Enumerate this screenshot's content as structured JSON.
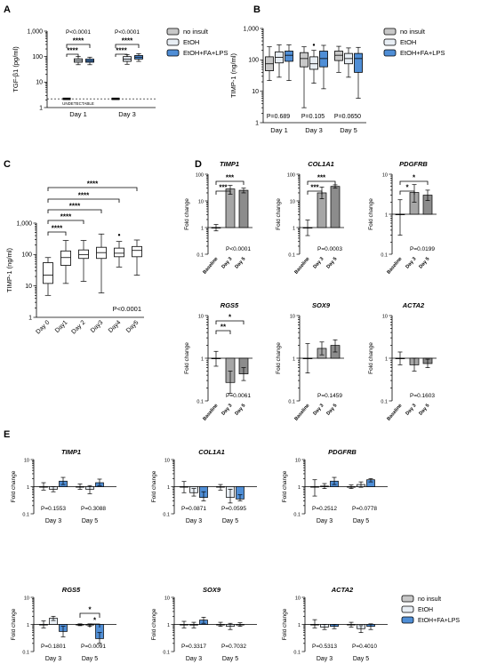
{
  "colors": {
    "no_insult": "#c8c8c8",
    "etoh": "#e8eef4",
    "etoh_fa_lps": "#4f8ed6",
    "day_gray": "#a6a6a6",
    "day_gray_dark": "#8c8c8c"
  },
  "panels": {
    "A": {
      "letter": "A",
      "ylabel": "TGF-β1 (pg/ml)",
      "ytick_labels": [
        "1,000",
        "100",
        "10",
        "1"
      ],
      "p_values": [
        "P<0.0001",
        "P<0.0001"
      ],
      "stars": "****",
      "undetectable": "UNDETECTABLE",
      "categories": [
        "Day 1",
        "Day 3"
      ]
    },
    "B": {
      "letter": "B",
      "ylabel": "TIMP-1 (ng/ml)",
      "ytick_labels": [
        "1,000",
        "100",
        "10",
        "1"
      ],
      "p_values": [
        "P=0.689",
        "P=0.105",
        "P=0.0650"
      ],
      "categories": [
        "Day 1",
        "Day 3",
        "Day 5"
      ]
    },
    "C": {
      "letter": "C",
      "ylabel": "TIMP-1 (ng/ml)",
      "ytick_labels": [
        "1,000",
        "100",
        "10",
        "1"
      ],
      "p_value": "P<0.0001",
      "stars": "****",
      "categories": [
        "Day 0",
        "Day1",
        "Day 2",
        "Day3",
        "Day4",
        "Day5"
      ]
    },
    "D": {
      "letter": "D",
      "ylabel": "Fold change",
      "categories": [
        "Baseline",
        "Day 3",
        "Day 5"
      ]
    },
    "E": {
      "letter": "E",
      "ylabel": "Fold change",
      "categories": [
        "Day 3",
        "Day 5"
      ]
    }
  },
  "legend": {
    "no_insult": "no insult",
    "etoh": "EtOH",
    "etoh_fa_lps": "EtOH+FA+LPS"
  },
  "chart_data": [
    {
      "id": "A",
      "type": "box",
      "log_scale": true,
      "ylim": [
        1,
        1000
      ],
      "categories": [
        "Day 1",
        "Day 3"
      ],
      "series": [
        {
          "name": "no insult",
          "boxes": [
            {
              "note": "UNDETECTABLE"
            },
            {
              "note": "UNDETECTABLE"
            }
          ]
        },
        {
          "name": "EtOH",
          "boxes": [
            {
              "min": 48,
              "q1": 60,
              "median": 70,
              "q3": 82,
              "max": 100
            },
            {
              "min": 50,
              "q1": 65,
              "median": 80,
              "q3": 100,
              "max": 120
            }
          ]
        },
        {
          "name": "EtOH+FA+LPS",
          "boxes": [
            {
              "min": 48,
              "q1": 60,
              "median": 68,
              "q3": 80,
              "max": 95
            },
            {
              "min": 65,
              "q1": 80,
              "median": 95,
              "q3": 110,
              "max": 130
            }
          ]
        }
      ]
    },
    {
      "id": "B",
      "type": "box",
      "log_scale": true,
      "ylim": [
        1,
        1000
      ],
      "categories": [
        "Day 1",
        "Day 3",
        "Day 5"
      ],
      "series": [
        {
          "name": "no insult",
          "boxes": [
            {
              "min": 22,
              "q1": 45,
              "median": 75,
              "q3": 125,
              "max": 260
            },
            {
              "min": 3,
              "q1": 60,
              "median": 110,
              "q3": 170,
              "max": 260
            },
            {
              "min": 40,
              "q1": 95,
              "median": 140,
              "q3": 190,
              "max": 270
            }
          ]
        },
        {
          "name": "EtOH",
          "boxes": [
            {
              "min": 28,
              "q1": 80,
              "median": 120,
              "q3": 180,
              "max": 300
            },
            {
              "min": 18,
              "q1": 50,
              "median": 75,
              "q3": 125,
              "max": 200
            },
            {
              "min": 28,
              "q1": 75,
              "median": 110,
              "q3": 160,
              "max": 240
            }
          ]
        },
        {
          "name": "EtOH+FA+LPS",
          "boxes": [
            {
              "min": 22,
              "q1": 90,
              "median": 140,
              "q3": 190,
              "max": 300
            },
            {
              "min": 12,
              "q1": 60,
              "median": 110,
              "q3": 190,
              "max": 290
            },
            {
              "min": 6,
              "q1": 40,
              "median": 110,
              "q3": 160,
              "max": 250
            }
          ]
        }
      ]
    },
    {
      "id": "C",
      "type": "box",
      "log_scale": true,
      "ylim": [
        1,
        1000
      ],
      "categories": [
        "Day 0",
        "Day1",
        "Day 2",
        "Day3",
        "Day4",
        "Day5"
      ],
      "series": [
        {
          "name": "",
          "boxes": [
            {
              "min": 5,
              "q1": 12,
              "median": 22,
              "q3": 55,
              "max": 80
            },
            {
              "min": 12,
              "q1": 45,
              "median": 80,
              "q3": 130,
              "max": 280
            },
            {
              "min": 14,
              "q1": 75,
              "median": 100,
              "q3": 140,
              "max": 280
            },
            {
              "min": 6,
              "q1": 75,
              "median": 115,
              "q3": 170,
              "max": 450
            },
            {
              "min": 40,
              "q1": 85,
              "median": 110,
              "q3": 160,
              "max": 260
            },
            {
              "min": 22,
              "q1": 85,
              "median": 135,
              "q3": 180,
              "max": 290
            }
          ]
        }
      ]
    },
    {
      "id": "D",
      "type": "bar",
      "log_scale": true,
      "subplots": [
        {
          "title": "TIMP1",
          "ylim": [
            0.1,
            100
          ],
          "ytick_labels": [
            "100",
            "10",
            "1",
            "0.1"
          ],
          "values": [
            1,
            28,
            25
          ],
          "err_hi": [
            1.3,
            38,
            30
          ],
          "err_lo": [
            0.75,
            18,
            20
          ],
          "p_value": "P<0.0001",
          "sig": [
            "***",
            "***"
          ]
        },
        {
          "title": "COL1A1",
          "ylim": [
            0.1,
            100
          ],
          "ytick_labels": [
            "100",
            "10",
            "1",
            "0.1"
          ],
          "values": [
            1,
            20,
            35
          ],
          "err_hi": [
            1.9,
            33,
            40
          ],
          "err_lo": [
            0.5,
            12,
            30
          ],
          "p_value": "P=0.0003",
          "sig": [
            "***",
            "***"
          ]
        },
        {
          "title": "PDGFRB",
          "ylim": [
            0.1,
            10
          ],
          "ytick_labels": [
            "10",
            "1",
            "0.1"
          ],
          "values": [
            1,
            3.5,
            3.0
          ],
          "err_hi": [
            2.3,
            5.5,
            4.0
          ],
          "err_lo": [
            0.3,
            2.0,
            2.2
          ],
          "p_value": "P=0.0199",
          "sig": [
            "*",
            "*"
          ]
        },
        {
          "title": "RGS5",
          "ylim": [
            0.1,
            10
          ],
          "ytick_labels": [
            "10",
            "1",
            "0.1"
          ],
          "values": [
            1,
            0.27,
            0.43
          ],
          "err_hi": [
            1.45,
            0.5,
            0.6
          ],
          "err_lo": [
            0.65,
            0.15,
            0.3
          ],
          "p_value": "P=0.0061",
          "sig": [
            "**",
            "*"
          ]
        },
        {
          "title": "SOX9",
          "ylim": [
            0.1,
            10
          ],
          "ytick_labels": [
            "10",
            "1",
            "0.1"
          ],
          "values": [
            1,
            1.7,
            2.0
          ],
          "err_hi": [
            2.2,
            2.4,
            2.7
          ],
          "err_lo": [
            0.45,
            1.2,
            1.4
          ],
          "p_value": "P=0.1459",
          "sig": []
        },
        {
          "title": "ACTA2",
          "ylim": [
            0.1,
            10
          ],
          "ytick_labels": [
            "10",
            "1",
            "0.1"
          ],
          "values": [
            1,
            0.7,
            0.75
          ],
          "err_hi": [
            1.4,
            1.0,
            0.95
          ],
          "err_lo": [
            0.7,
            0.5,
            0.6
          ],
          "p_value": "P=0.1603",
          "sig": []
        }
      ]
    },
    {
      "id": "E",
      "type": "bar",
      "log_scale": true,
      "ylim": [
        0.1,
        10
      ],
      "ytick_labels": [
        "10",
        "1",
        "0.1"
      ],
      "series_names": [
        "no insult",
        "EtOH",
        "EtOH+FA+LPS"
      ],
      "subplots": [
        {
          "title": "TIMP1",
          "values": [
            [
              1,
              0.8,
              1.6
            ],
            [
              1,
              0.8,
              1.4
            ]
          ],
          "err_hi": [
            [
              1.4,
              1.0,
              2.2
            ],
            [
              1.25,
              1.1,
              1.9
            ]
          ],
          "err_lo": [
            [
              0.75,
              0.65,
              1.2
            ],
            [
              0.8,
              0.55,
              1.1
            ]
          ],
          "p_values": [
            "P=0.1553",
            "P=0.3088"
          ],
          "sig": []
        },
        {
          "title": "COL1A1",
          "values": [
            [
              1,
              0.6,
              0.4
            ],
            [
              1,
              0.4,
              0.35
            ]
          ],
          "err_hi": [
            [
              1.55,
              0.85,
              0.65
            ],
            [
              1.2,
              0.8,
              0.5
            ]
          ],
          "err_lo": [
            [
              0.6,
              0.45,
              0.3
            ],
            [
              0.75,
              0.25,
              0.3
            ]
          ],
          "p_values": [
            "P=0.0871",
            "P=0.0595"
          ],
          "sig": []
        },
        {
          "title": "PDGFRB",
          "values": [
            [
              1,
              1.05,
              1.6
            ],
            [
              1,
              1.2,
              1.8
            ]
          ],
          "err_hi": [
            [
              1.8,
              1.3,
              2.2
            ],
            [
              1.15,
              1.5,
              2.0
            ]
          ],
          "err_lo": [
            [
              0.45,
              0.85,
              1.2
            ],
            [
              0.85,
              0.95,
              1.5
            ]
          ],
          "p_values": [
            "P=0.2512",
            "P=0.0778"
          ],
          "sig": []
        },
        {
          "title": "RGS5",
          "values": [
            [
              1,
              1.7,
              0.55
            ],
            [
              1,
              0.95,
              0.3
            ]
          ],
          "err_hi": [
            [
              1.35,
              2.0,
              0.85
            ],
            [
              1.05,
              1.05,
              0.5
            ]
          ],
          "err_lo": [
            [
              0.75,
              1.4,
              0.35
            ],
            [
              0.9,
              0.85,
              0.2
            ]
          ],
          "p_values": [
            "P=0.1801",
            "P=0.0091"
          ],
          "sig": [
            "*",
            "*"
          ]
        },
        {
          "title": "SOX9",
          "values": [
            [
              1,
              0.95,
              1.45
            ],
            [
              1,
              0.85,
              1.0
            ]
          ],
          "err_hi": [
            [
              1.3,
              1.2,
              1.85
            ],
            [
              1.2,
              1.1,
              1.15
            ]
          ],
          "err_lo": [
            [
              0.75,
              0.75,
              1.1
            ],
            [
              0.85,
              0.65,
              0.85
            ]
          ],
          "p_values": [
            "P=0.3317",
            "P=0.7032"
          ],
          "sig": []
        },
        {
          "title": "ACTA2",
          "values": [
            [
              1,
              0.8,
              0.85
            ],
            [
              1,
              0.7,
              0.85
            ]
          ],
          "err_hi": [
            [
              1.5,
              1.0,
              1.0
            ],
            [
              1.2,
              0.9,
              1.05
            ]
          ],
          "err_lo": [
            [
              0.75,
              0.65,
              0.7
            ],
            [
              0.8,
              0.5,
              0.65
            ]
          ],
          "p_values": [
            "P=0.5313",
            "P=0.4010"
          ],
          "sig": []
        }
      ]
    }
  ]
}
